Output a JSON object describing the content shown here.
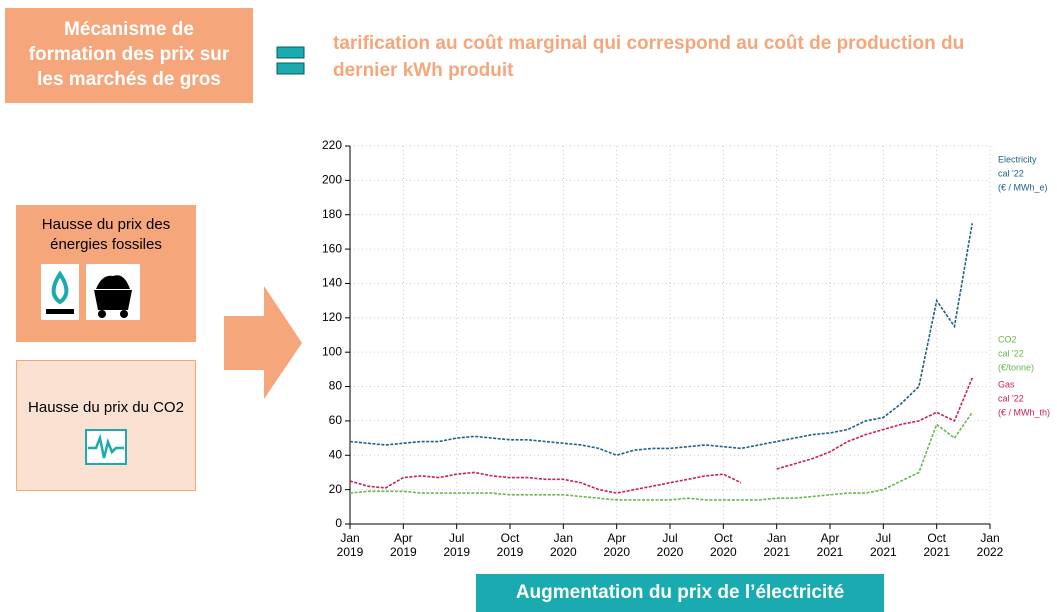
{
  "slide": {
    "heading": "Mécanisme de formation des prix sur les marchés de gros",
    "statement": "tarification au coût marginal qui correspond au coût de production du dernier kWh produit",
    "box_fossil": "Hausse du prix des énergies fossiles",
    "box_co2": "Hausse du prix du CO2",
    "banner": "Augmentation du prix de l’électricité"
  },
  "chart_data": {
    "type": "line",
    "grid": true,
    "x": [
      "2019-01",
      "2019-02",
      "2019-03",
      "2019-04",
      "2019-05",
      "2019-06",
      "2019-07",
      "2019-08",
      "2019-09",
      "2019-10",
      "2019-11",
      "2019-12",
      "2020-01",
      "2020-02",
      "2020-03",
      "2020-04",
      "2020-05",
      "2020-06",
      "2020-07",
      "2020-08",
      "2020-09",
      "2020-10",
      "2020-11",
      "2020-12",
      "2021-01",
      "2021-02",
      "2021-03",
      "2021-04",
      "2021-05",
      "2021-06",
      "2021-07",
      "2021-08",
      "2021-09",
      "2021-10",
      "2021-11",
      "2021-12"
    ],
    "xlim": [
      "2019-01",
      "2022-01"
    ],
    "xticks": [
      {
        "value": "2019-01",
        "label": "Jan 2019"
      },
      {
        "value": "2019-04",
        "label": "Apr 2019"
      },
      {
        "value": "2019-07",
        "label": "Jul 2019"
      },
      {
        "value": "2019-10",
        "label": "Oct 2019"
      },
      {
        "value": "2020-01",
        "label": "Jan 2020"
      },
      {
        "value": "2020-04",
        "label": "Apr 2020"
      },
      {
        "value": "2020-07",
        "label": "Jul 2020"
      },
      {
        "value": "2020-10",
        "label": "Oct 2020"
      },
      {
        "value": "2021-01",
        "label": "Jan 2021"
      },
      {
        "value": "2021-04",
        "label": "Apr 2021"
      },
      {
        "value": "2021-07",
        "label": "Jul 2021"
      },
      {
        "value": "2021-10",
        "label": "Oct 2021"
      },
      {
        "value": "2022-01",
        "label": "Jan 2022"
      }
    ],
    "ylim": [
      0,
      220
    ],
    "yticks": [
      0,
      20,
      40,
      60,
      80,
      100,
      120,
      140,
      160,
      180,
      200,
      220
    ],
    "series": [
      {
        "name": "Electricity",
        "label_lines": [
          "cal '22",
          "(€ / MWh_e)"
        ],
        "color": "#1f5f86",
        "values": [
          48,
          47,
          46,
          47,
          48,
          48,
          50,
          51,
          50,
          49,
          49,
          48,
          47,
          46,
          44,
          40,
          43,
          44,
          44,
          45,
          46,
          45,
          44,
          46,
          48,
          50,
          52,
          53,
          55,
          60,
          62,
          70,
          80,
          130,
          115,
          175
        ]
      },
      {
        "name": "CO2",
        "label_lines": [
          "cal '22",
          "(€/tonne)"
        ],
        "color": "#6ab74c",
        "values": [
          18,
          19,
          19,
          19,
          18,
          18,
          18,
          18,
          18,
          17,
          17,
          17,
          17,
          16,
          15,
          14,
          14,
          14,
          14,
          15,
          14,
          14,
          14,
          14,
          15,
          15,
          16,
          17,
          18,
          18,
          20,
          25,
          30,
          58,
          50,
          65
        ]
      },
      {
        "name": "Gas",
        "label_lines": [
          "cal '22",
          "(€ / MWh_th)"
        ],
        "color": "#c8204f",
        "values": [
          25,
          22,
          21,
          27,
          28,
          27,
          29,
          30,
          28,
          27,
          27,
          26,
          26,
          24,
          20,
          18,
          20,
          22,
          24,
          26,
          28,
          29,
          24,
          null,
          32,
          35,
          38,
          42,
          48,
          52,
          55,
          58,
          60,
          65,
          60,
          85
        ]
      }
    ]
  }
}
